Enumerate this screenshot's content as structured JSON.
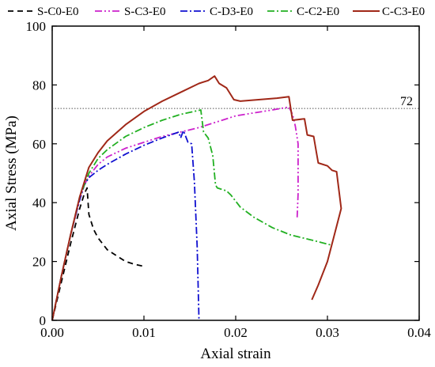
{
  "chart_data": {
    "type": "line",
    "xlabel": "Axial strain",
    "ylabel": "Axial Stress (MPa)",
    "xlim": [
      0,
      0.04
    ],
    "ylim": [
      0,
      100
    ],
    "x_ticks": [
      "0.00",
      "0.01",
      "0.02",
      "0.03",
      "0.04"
    ],
    "y_ticks": [
      "0",
      "20",
      "40",
      "60",
      "80",
      "100"
    ],
    "x_tick_values": [
      0,
      0.01,
      0.02,
      0.03,
      0.04
    ],
    "y_tick_values": [
      0,
      20,
      40,
      60,
      80,
      100
    ],
    "grid": false,
    "legend_position": "top",
    "reference_line": {
      "y": 72,
      "label": "72",
      "style": "dotted",
      "color": "#555555"
    },
    "series": [
      {
        "name": "S-C0-E0",
        "color": "#000000",
        "dash": "dashed",
        "points": [
          [
            0,
            0
          ],
          [
            0.001,
            13
          ],
          [
            0.002,
            26
          ],
          [
            0.003,
            38
          ],
          [
            0.0035,
            43
          ],
          [
            0.0038,
            45
          ],
          [
            0.004,
            36
          ],
          [
            0.0045,
            31
          ],
          [
            0.005,
            28
          ],
          [
            0.006,
            24
          ],
          [
            0.007,
            22
          ],
          [
            0.008,
            20
          ],
          [
            0.009,
            19
          ],
          [
            0.0098,
            18.5
          ]
        ]
      },
      {
        "name": "S-C3-E0",
        "color": "#cc22cc",
        "dash": "dashdot2",
        "points": [
          [
            0,
            0
          ],
          [
            0.001,
            15
          ],
          [
            0.002,
            29
          ],
          [
            0.003,
            41
          ],
          [
            0.0035,
            46
          ],
          [
            0.004,
            49
          ],
          [
            0.005,
            53
          ],
          [
            0.006,
            55.5
          ],
          [
            0.008,
            58.5
          ],
          [
            0.01,
            60.5
          ],
          [
            0.012,
            62.5
          ],
          [
            0.014,
            64
          ],
          [
            0.016,
            65.5
          ],
          [
            0.018,
            67.5
          ],
          [
            0.02,
            69.5
          ],
          [
            0.022,
            70.5
          ],
          [
            0.024,
            71.5
          ],
          [
            0.0258,
            72.5
          ],
          [
            0.0262,
            70
          ],
          [
            0.0265,
            66
          ],
          [
            0.0268,
            60
          ],
          [
            0.0268,
            50
          ],
          [
            0.0268,
            43
          ],
          [
            0.0267,
            35
          ]
        ]
      },
      {
        "name": "C-D3-E0",
        "color": "#1010d0",
        "dash": "dashdot1",
        "points": [
          [
            0,
            0
          ],
          [
            0.001,
            15
          ],
          [
            0.002,
            29
          ],
          [
            0.003,
            41
          ],
          [
            0.0035,
            46
          ],
          [
            0.004,
            48.5
          ],
          [
            0.005,
            51
          ],
          [
            0.006,
            53
          ],
          [
            0.008,
            56.5
          ],
          [
            0.01,
            59.5
          ],
          [
            0.012,
            62
          ],
          [
            0.0138,
            64
          ],
          [
            0.014,
            62
          ],
          [
            0.0143,
            64.5
          ],
          [
            0.0148,
            60.5
          ],
          [
            0.0152,
            60
          ],
          [
            0.0155,
            47
          ],
          [
            0.0158,
            25
          ],
          [
            0.016,
            0
          ]
        ]
      },
      {
        "name": "C-C2-E0",
        "color": "#22b022",
        "dash": "dashdot1",
        "points": [
          [
            0,
            0
          ],
          [
            0.001,
            15
          ],
          [
            0.002,
            29
          ],
          [
            0.003,
            42
          ],
          [
            0.0035,
            46
          ],
          [
            0.004,
            50
          ],
          [
            0.005,
            55
          ],
          [
            0.006,
            58
          ],
          [
            0.008,
            62.5
          ],
          [
            0.01,
            65.5
          ],
          [
            0.012,
            68
          ],
          [
            0.014,
            70
          ],
          [
            0.0162,
            71.5
          ],
          [
            0.0165,
            64
          ],
          [
            0.017,
            62
          ],
          [
            0.0175,
            56
          ],
          [
            0.0178,
            46
          ],
          [
            0.018,
            45
          ],
          [
            0.019,
            44
          ],
          [
            0.0195,
            42.5
          ],
          [
            0.0205,
            38.5
          ],
          [
            0.022,
            35
          ],
          [
            0.024,
            31.5
          ],
          [
            0.026,
            29
          ],
          [
            0.028,
            27.5
          ],
          [
            0.0305,
            25.5
          ]
        ]
      },
      {
        "name": "C-C3-E0",
        "color": "#a02818",
        "dash": "solid",
        "points": [
          [
            0,
            0
          ],
          [
            0.001,
            15
          ],
          [
            0.002,
            29
          ],
          [
            0.003,
            42
          ],
          [
            0.0035,
            47
          ],
          [
            0.004,
            52
          ],
          [
            0.005,
            57
          ],
          [
            0.006,
            61
          ],
          [
            0.008,
            66.5
          ],
          [
            0.01,
            71
          ],
          [
            0.012,
            74.5
          ],
          [
            0.014,
            77.5
          ],
          [
            0.016,
            80.5
          ],
          [
            0.017,
            81.5
          ],
          [
            0.0177,
            83
          ],
          [
            0.0182,
            80.5
          ],
          [
            0.019,
            79
          ],
          [
            0.0198,
            75
          ],
          [
            0.0205,
            74.5
          ],
          [
            0.0225,
            75
          ],
          [
            0.0245,
            75.5
          ],
          [
            0.0258,
            76
          ],
          [
            0.026,
            72
          ],
          [
            0.0262,
            68
          ],
          [
            0.0275,
            68.5
          ],
          [
            0.0278,
            63
          ],
          [
            0.0285,
            62.5
          ],
          [
            0.0288,
            57
          ],
          [
            0.029,
            53.5
          ],
          [
            0.03,
            52.5
          ],
          [
            0.0305,
            51
          ],
          [
            0.031,
            50.5
          ],
          [
            0.0315,
            38
          ],
          [
            0.031,
            32
          ],
          [
            0.03,
            20
          ],
          [
            0.029,
            12
          ],
          [
            0.0283,
            7
          ]
        ]
      }
    ]
  }
}
